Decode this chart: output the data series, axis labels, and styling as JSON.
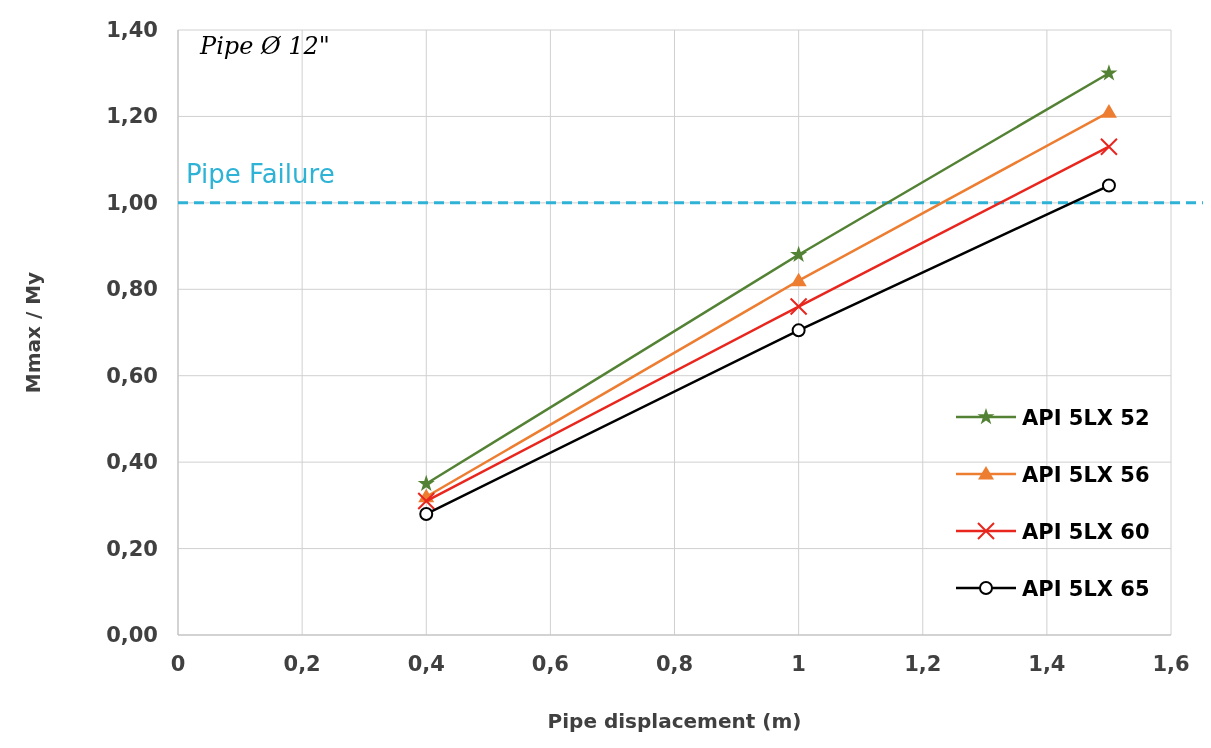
{
  "chart_data": {
    "type": "line",
    "xlabel": "Pipe displacement (m)",
    "ylabel": "Mmax / My",
    "annotations": [
      "Pipe Ø 12\""
    ],
    "x": [
      0.4,
      1,
      1.5
    ],
    "series": [
      {
        "name": "API 5LX 52",
        "color": "#548235",
        "marker": "star",
        "values": [
          0.35,
          0.88,
          1.3
        ]
      },
      {
        "name": "API 5LX 56",
        "color": "#ed7d31",
        "marker": "triangle",
        "values": [
          0.32,
          0.82,
          1.21
        ]
      },
      {
        "name": "API 5LX 60",
        "color": "#e8261d",
        "marker": "cross",
        "values": [
          0.31,
          0.76,
          1.13
        ]
      },
      {
        "name": "API 5LX 65",
        "color": "#000000",
        "marker": "circle",
        "values": [
          0.28,
          0.705,
          1.04
        ]
      }
    ],
    "xlim": [
      0,
      1.6
    ],
    "xticks": [
      0,
      {
        "value": 0.2,
        "label": "0,2"
      },
      {
        "value": 0.4,
        "label": "0,4"
      },
      {
        "value": 0.6,
        "label": "0,6"
      },
      {
        "value": 0.8,
        "label": "0,8"
      },
      1,
      {
        "value": 1.2,
        "label": "1,2"
      },
      {
        "value": 1.4,
        "label": "1,4"
      },
      {
        "value": 1.6,
        "label": "1,6"
      }
    ],
    "ylim": [
      0,
      1.4
    ],
    "yticks": [
      {
        "value": 0,
        "label": "0,00"
      },
      {
        "value": 0.2,
        "label": "0,20"
      },
      {
        "value": 0.4,
        "label": "0,40"
      },
      {
        "value": 0.6,
        "label": "0,60"
      },
      {
        "value": 0.8,
        "label": "0,80"
      },
      {
        "value": 1,
        "label": "1,00"
      },
      {
        "value": 1.2,
        "label": "1,20"
      },
      {
        "value": 1.4,
        "label": "1,40"
      }
    ],
    "ref_lines": [
      {
        "axis": "y",
        "value": 1,
        "label": "Pipe Failure",
        "color": "#2eb3d6",
        "line_style": "dashed"
      }
    ],
    "grid": true,
    "legend": "bottom right",
    "line_style": "solid"
  }
}
